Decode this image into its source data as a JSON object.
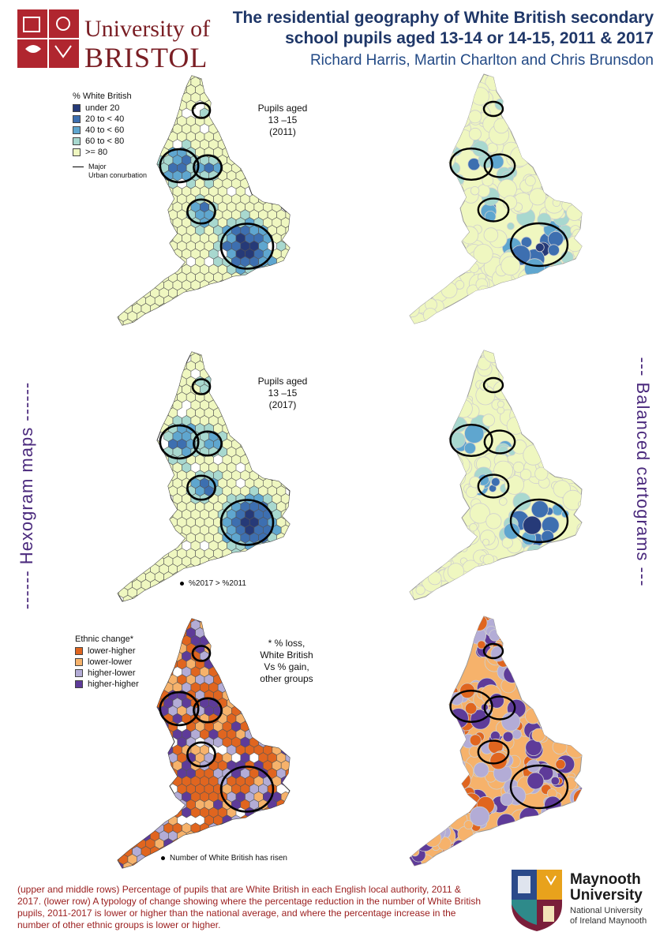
{
  "header": {
    "university_line1": "University of",
    "university_line2": "BRISTOL",
    "title_line1": "The residential geography of White British secondary",
    "title_line2": "school pupils aged 13-14 or 14-15, 2011 & 2017",
    "authors": "Richard Harris, Martin Charlton and Chris Brunsdon"
  },
  "side_labels": {
    "left": "------ Hexogram maps ------",
    "right": "--- Balanced cartograms ---"
  },
  "legend_white_british": {
    "title": "% White British",
    "items": [
      {
        "label": "under 20",
        "color": "#263a78"
      },
      {
        "label": "20 to < 40",
        "color": "#3d6fb0"
      },
      {
        "label": "40 to < 60",
        "color": "#5fa6cf"
      },
      {
        "label": "60 to < 80",
        "color": "#a8d8cf"
      },
      {
        "label": ">= 80",
        "color": "#eff7c0"
      }
    ],
    "boundary_label_line1": "Major",
    "boundary_label_line2": "Urban conurbation"
  },
  "note_2011": {
    "line1": "Pupils aged",
    "line2": "13 –15",
    "line3": "(2011)"
  },
  "note_2017": {
    "line1": "Pupils aged",
    "line2": "13 –15",
    "line3": "(2017)"
  },
  "footnote_2017": "%2017 > %2011",
  "legend_ethnic_change": {
    "title": "Ethnic change*",
    "items": [
      {
        "label": "lower-higher",
        "color": "#e0651f"
      },
      {
        "label": "lower-lower",
        "color": "#f6b26b"
      },
      {
        "label": "higher-lower",
        "color": "#b3acd6"
      },
      {
        "label": "higher-higher",
        "color": "#5e3b99"
      }
    ]
  },
  "note_change": {
    "line1": "* % loss,",
    "line2": "White British",
    "line3": "Vs % gain,",
    "line4": "other groups"
  },
  "footnote_change": "Number of White British has risen",
  "caption": "(upper and middle rows) Percentage of pupils that are White British in each English local authority, 2011 & 2017. (lower row) A typology of change showing where the percentage reduction in the number of White British pupils, 2011-2017 is lower or higher than the national average, and where the percentage increase in the number of other ethnic groups is lower or higher.",
  "maynooth": {
    "name_line1": "Maynooth",
    "name_line2": "University",
    "sub_line1": "National University",
    "sub_line2": "of Ireland Maynooth"
  },
  "colors": {
    "bristol": "#7a1e24",
    "title": "#1f3768",
    "side_label": "#4b2a7d",
    "caption": "#9a1d1d"
  }
}
